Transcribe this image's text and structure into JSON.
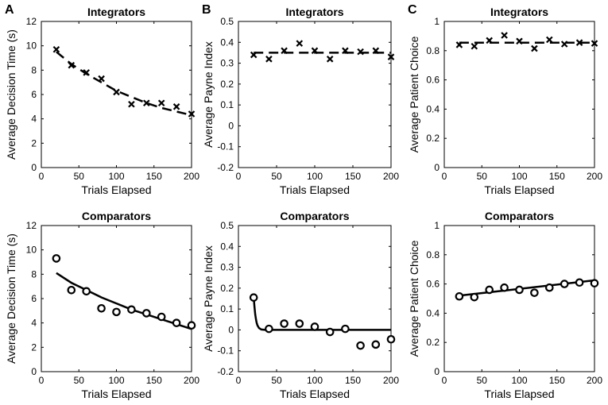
{
  "chart_data": [
    {
      "id": "A-top",
      "panel_letter": "A",
      "type": "scatter",
      "title": "Integrators",
      "xlabel": "Trials Elapsed",
      "ylabel": "Average Decision Time (s)",
      "xlim": [
        0,
        200
      ],
      "ylim": [
        0,
        12
      ],
      "xticks": [
        0,
        50,
        100,
        150,
        200
      ],
      "yticks": [
        0,
        2,
        4,
        6,
        8,
        10,
        12
      ],
      "marker": "x",
      "points": {
        "x": [
          20,
          40,
          60,
          80,
          100,
          120,
          140,
          160,
          180,
          200
        ],
        "y": [
          9.7,
          8.4,
          7.8,
          7.3,
          6.2,
          5.2,
          5.3,
          5.3,
          5.0,
          4.4
        ]
      },
      "fit": {
        "style": "dashed",
        "x": [
          20,
          40,
          60,
          80,
          100,
          120,
          140,
          160,
          180,
          200
        ],
        "y": [
          9.5,
          8.5,
          7.7,
          7.0,
          6.3,
          5.8,
          5.3,
          4.9,
          4.6,
          4.3
        ]
      }
    },
    {
      "id": "B-top",
      "panel_letter": "B",
      "type": "scatter",
      "title": "Integrators",
      "xlabel": "Trials Elapsed",
      "ylabel": "Average Payne Index",
      "xlim": [
        0,
        200
      ],
      "ylim": [
        -0.2,
        0.5
      ],
      "xticks": [
        0,
        50,
        100,
        150,
        200
      ],
      "yticks": [
        "-0.2",
        "-0.1",
        "0",
        "0.1",
        "0.2",
        "0.3",
        "0.4",
        "0.5"
      ],
      "marker": "x",
      "points": {
        "x": [
          20,
          40,
          60,
          80,
          100,
          120,
          140,
          160,
          180,
          200
        ],
        "y": [
          0.34,
          0.32,
          0.36,
          0.395,
          0.36,
          0.32,
          0.36,
          0.355,
          0.36,
          0.33
        ]
      },
      "fit": {
        "style": "dashed",
        "x": [
          20,
          200
        ],
        "y": [
          0.35,
          0.35
        ]
      }
    },
    {
      "id": "C-top",
      "panel_letter": "C",
      "type": "scatter",
      "title": "Integrators",
      "xlabel": "Trials Elapsed",
      "ylabel": "Average Patient Choice",
      "xlim": [
        0,
        200
      ],
      "ylim": [
        0,
        1
      ],
      "xticks": [
        0,
        50,
        100,
        150,
        200
      ],
      "yticks": [
        "0",
        "0.2",
        "0.4",
        "0.6",
        "0.8",
        "1"
      ],
      "marker": "x",
      "points": {
        "x": [
          20,
          40,
          60,
          80,
          100,
          120,
          140,
          160,
          180,
          200
        ],
        "y": [
          0.84,
          0.83,
          0.87,
          0.905,
          0.865,
          0.815,
          0.875,
          0.845,
          0.855,
          0.85
        ]
      },
      "fit": {
        "style": "dashed",
        "x": [
          20,
          200
        ],
        "y": [
          0.855,
          0.855
        ]
      }
    },
    {
      "id": "A-bottom",
      "panel_letter": "",
      "type": "scatter",
      "title": "Comparators",
      "xlabel": "Trials Elapsed",
      "ylabel": "Average Decision Time (s)",
      "xlim": [
        0,
        200
      ],
      "ylim": [
        0,
        12
      ],
      "xticks": [
        0,
        50,
        100,
        150,
        200
      ],
      "yticks": [
        0,
        2,
        4,
        6,
        8,
        10,
        12
      ],
      "marker": "o",
      "points": {
        "x": [
          20,
          40,
          60,
          80,
          100,
          120,
          140,
          160,
          180,
          200
        ],
        "y": [
          9.3,
          6.7,
          6.6,
          5.2,
          4.9,
          5.1,
          4.8,
          4.5,
          4.0,
          3.8
        ]
      },
      "fit": {
        "style": "solid",
        "x": [
          20,
          40,
          60,
          80,
          100,
          120,
          140,
          160,
          180,
          200
        ],
        "y": [
          8.1,
          7.3,
          6.7,
          6.1,
          5.6,
          5.1,
          4.7,
          4.3,
          3.9,
          3.5
        ]
      }
    },
    {
      "id": "B-bottom",
      "panel_letter": "",
      "type": "scatter",
      "title": "Comparators",
      "xlabel": "Trials Elapsed",
      "ylabel": "Average Payne Index",
      "xlim": [
        0,
        200
      ],
      "ylim": [
        -0.2,
        0.5
      ],
      "xticks": [
        0,
        50,
        100,
        150,
        200
      ],
      "yticks": [
        "-0.2",
        "-0.1",
        "0",
        "0.1",
        "0.2",
        "0.3",
        "0.4",
        "0.5"
      ],
      "marker": "o",
      "points": {
        "x": [
          20,
          40,
          60,
          80,
          100,
          120,
          140,
          160,
          180,
          200
        ],
        "y": [
          0.155,
          0.005,
          0.03,
          0.03,
          0.015,
          -0.01,
          0.005,
          -0.075,
          -0.07,
          -0.045
        ]
      },
      "fit": {
        "style": "solid",
        "x": [
          20,
          21,
          22,
          23,
          24,
          25,
          27,
          30,
          35,
          40,
          60,
          100,
          150,
          200
        ],
        "y": [
          0.155,
          0.11,
          0.075,
          0.05,
          0.033,
          0.021,
          0.009,
          0.002,
          0.0,
          0.0,
          0.0,
          0.0,
          0.0,
          0.0
        ]
      }
    },
    {
      "id": "C-bottom",
      "panel_letter": "",
      "type": "scatter",
      "title": "Comparators",
      "xlabel": "Trials Elapsed",
      "ylabel": "Average Patient Choice",
      "xlim": [
        0,
        200
      ],
      "ylim": [
        0,
        1
      ],
      "xticks": [
        0,
        50,
        100,
        150,
        200
      ],
      "yticks": [
        "0",
        "0.2",
        "0.4",
        "0.6",
        "0.8",
        "1"
      ],
      "marker": "o",
      "points": {
        "x": [
          20,
          40,
          60,
          80,
          100,
          120,
          140,
          160,
          180,
          200
        ],
        "y": [
          0.515,
          0.51,
          0.56,
          0.575,
          0.56,
          0.54,
          0.575,
          0.6,
          0.61,
          0.605
        ]
      },
      "fit": {
        "style": "solid",
        "x": [
          20,
          200
        ],
        "y": [
          0.52,
          0.625
        ]
      }
    }
  ]
}
